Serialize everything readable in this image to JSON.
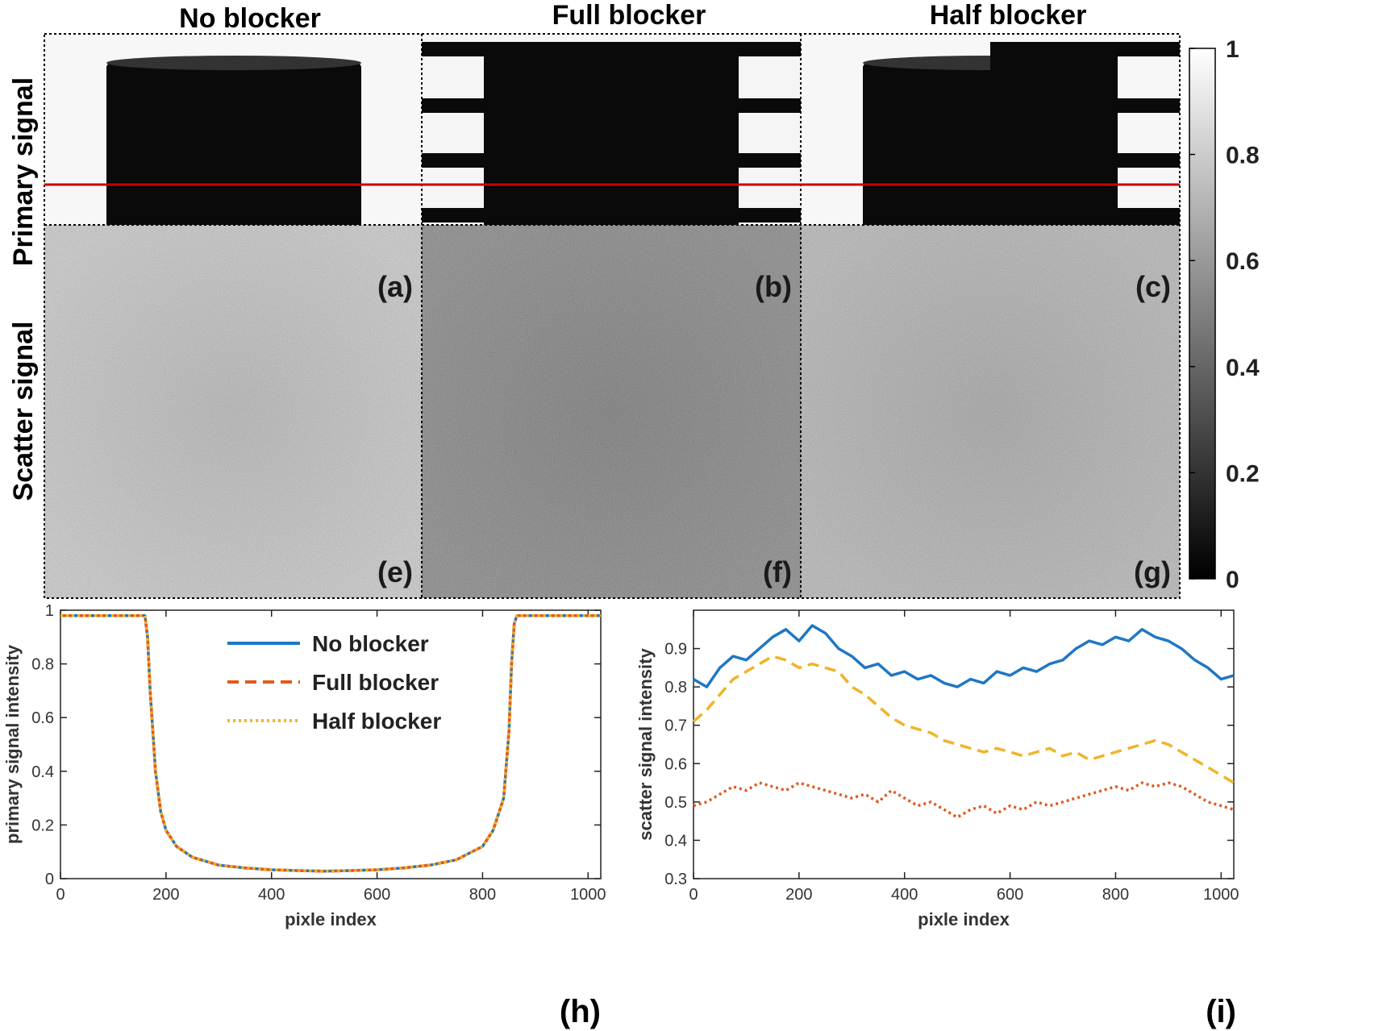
{
  "column_titles": [
    "No blocker",
    "Full blocker",
    "Half blocker"
  ],
  "row_titles": [
    "Primary signal",
    "Scatter signal"
  ],
  "panel_labels": [
    "(a)",
    "(b)",
    "(c)",
    "(e)",
    "(f)",
    "(g)",
    "(h)",
    "(i)"
  ],
  "colormap": "gray",
  "colorbar": {
    "ticks": [
      "0",
      "0.2",
      "0.4",
      "0.6",
      "0.8",
      "1"
    ],
    "range": [
      0,
      1
    ]
  },
  "profile_line_color": "#cc0000",
  "scatter_levels": {
    "no_blocker": 0.82,
    "full_blocker": 0.5,
    "half_blocker": 0.72
  },
  "chart_data": [
    {
      "panel": "(h)",
      "type": "line",
      "xlabel": "pixle index",
      "ylabel": "primary signal intensity",
      "xlim": [
        0,
        1024
      ],
      "ylim": [
        0,
        1
      ],
      "xticks": [
        "0",
        "200",
        "400",
        "600",
        "800",
        "1000"
      ],
      "yticks": [
        "0",
        "0.2",
        "0.4",
        "0.6",
        "0.8",
        "1"
      ],
      "legend_position": "top-center",
      "x": [
        0,
        100,
        160,
        165,
        170,
        180,
        190,
        200,
        220,
        250,
        300,
        350,
        400,
        450,
        500,
        550,
        600,
        650,
        700,
        750,
        800,
        820,
        840,
        850,
        855,
        860,
        865,
        900,
        1000,
        1024
      ],
      "series": [
        {
          "name": "No blocker",
          "color": "#1f77c4",
          "style": "solid",
          "values": [
            0.98,
            0.98,
            0.98,
            0.9,
            0.7,
            0.4,
            0.25,
            0.18,
            0.12,
            0.08,
            0.05,
            0.04,
            0.033,
            0.03,
            0.028,
            0.03,
            0.033,
            0.04,
            0.05,
            0.07,
            0.12,
            0.18,
            0.3,
            0.55,
            0.8,
            0.95,
            0.98,
            0.98,
            0.98,
            0.98
          ]
        },
        {
          "name": "Full  blocker",
          "color": "#e05a1f",
          "style": "dashed",
          "values": [
            0.98,
            0.98,
            0.98,
            0.9,
            0.7,
            0.4,
            0.25,
            0.18,
            0.12,
            0.08,
            0.05,
            0.04,
            0.033,
            0.03,
            0.028,
            0.03,
            0.033,
            0.04,
            0.05,
            0.07,
            0.12,
            0.18,
            0.3,
            0.55,
            0.8,
            0.95,
            0.98,
            0.98,
            0.98,
            0.98
          ]
        },
        {
          "name": "Half blocker",
          "color": "#f0b429",
          "style": "dotted",
          "values": [
            0.98,
            0.98,
            0.98,
            0.9,
            0.7,
            0.4,
            0.25,
            0.18,
            0.12,
            0.08,
            0.05,
            0.04,
            0.033,
            0.03,
            0.028,
            0.03,
            0.033,
            0.04,
            0.05,
            0.07,
            0.12,
            0.18,
            0.3,
            0.55,
            0.8,
            0.95,
            0.98,
            0.98,
            0.98,
            0.98
          ]
        }
      ]
    },
    {
      "panel": "(i)",
      "type": "line",
      "xlabel": "pixle index",
      "ylabel": "scatter signal intensity",
      "xlim": [
        0,
        1024
      ],
      "ylim": [
        0.3,
        1
      ],
      "xticks": [
        "0",
        "200",
        "400",
        "600",
        "800",
        "1000"
      ],
      "yticks": [
        "0.3",
        "0.4",
        "0.5",
        "0.6",
        "0.7",
        "0.8",
        "0.9"
      ],
      "x": [
        0,
        25,
        50,
        75,
        100,
        125,
        150,
        175,
        200,
        225,
        250,
        275,
        300,
        325,
        350,
        375,
        400,
        425,
        450,
        475,
        500,
        525,
        550,
        575,
        600,
        625,
        650,
        675,
        700,
        725,
        750,
        775,
        800,
        825,
        850,
        875,
        900,
        925,
        950,
        975,
        1000,
        1024
      ],
      "series": [
        {
          "color": "#1f77c4",
          "style": "solid",
          "values": [
            0.82,
            0.8,
            0.85,
            0.88,
            0.87,
            0.9,
            0.93,
            0.95,
            0.92,
            0.96,
            0.94,
            0.9,
            0.88,
            0.85,
            0.86,
            0.83,
            0.84,
            0.82,
            0.83,
            0.81,
            0.8,
            0.82,
            0.81,
            0.84,
            0.83,
            0.85,
            0.84,
            0.86,
            0.87,
            0.9,
            0.92,
            0.91,
            0.93,
            0.92,
            0.95,
            0.93,
            0.92,
            0.9,
            0.87,
            0.85,
            0.82,
            0.83
          ]
        },
        {
          "color": "#e05a1f",
          "style": "dotted",
          "values": [
            0.49,
            0.5,
            0.52,
            0.54,
            0.53,
            0.55,
            0.54,
            0.53,
            0.55,
            0.54,
            0.53,
            0.52,
            0.51,
            0.52,
            0.5,
            0.53,
            0.51,
            0.49,
            0.5,
            0.48,
            0.46,
            0.48,
            0.49,
            0.47,
            0.49,
            0.48,
            0.5,
            0.49,
            0.5,
            0.51,
            0.52,
            0.53,
            0.54,
            0.53,
            0.55,
            0.54,
            0.55,
            0.54,
            0.52,
            0.5,
            0.49,
            0.48
          ]
        },
        {
          "color": "#f0b429",
          "style": "dashed",
          "values": [
            0.71,
            0.74,
            0.78,
            0.82,
            0.84,
            0.86,
            0.88,
            0.87,
            0.85,
            0.86,
            0.85,
            0.84,
            0.8,
            0.78,
            0.75,
            0.72,
            0.7,
            0.69,
            0.68,
            0.66,
            0.65,
            0.64,
            0.63,
            0.64,
            0.63,
            0.62,
            0.63,
            0.64,
            0.62,
            0.63,
            0.61,
            0.62,
            0.63,
            0.64,
            0.65,
            0.66,
            0.65,
            0.63,
            0.61,
            0.59,
            0.57,
            0.55
          ]
        }
      ]
    }
  ]
}
